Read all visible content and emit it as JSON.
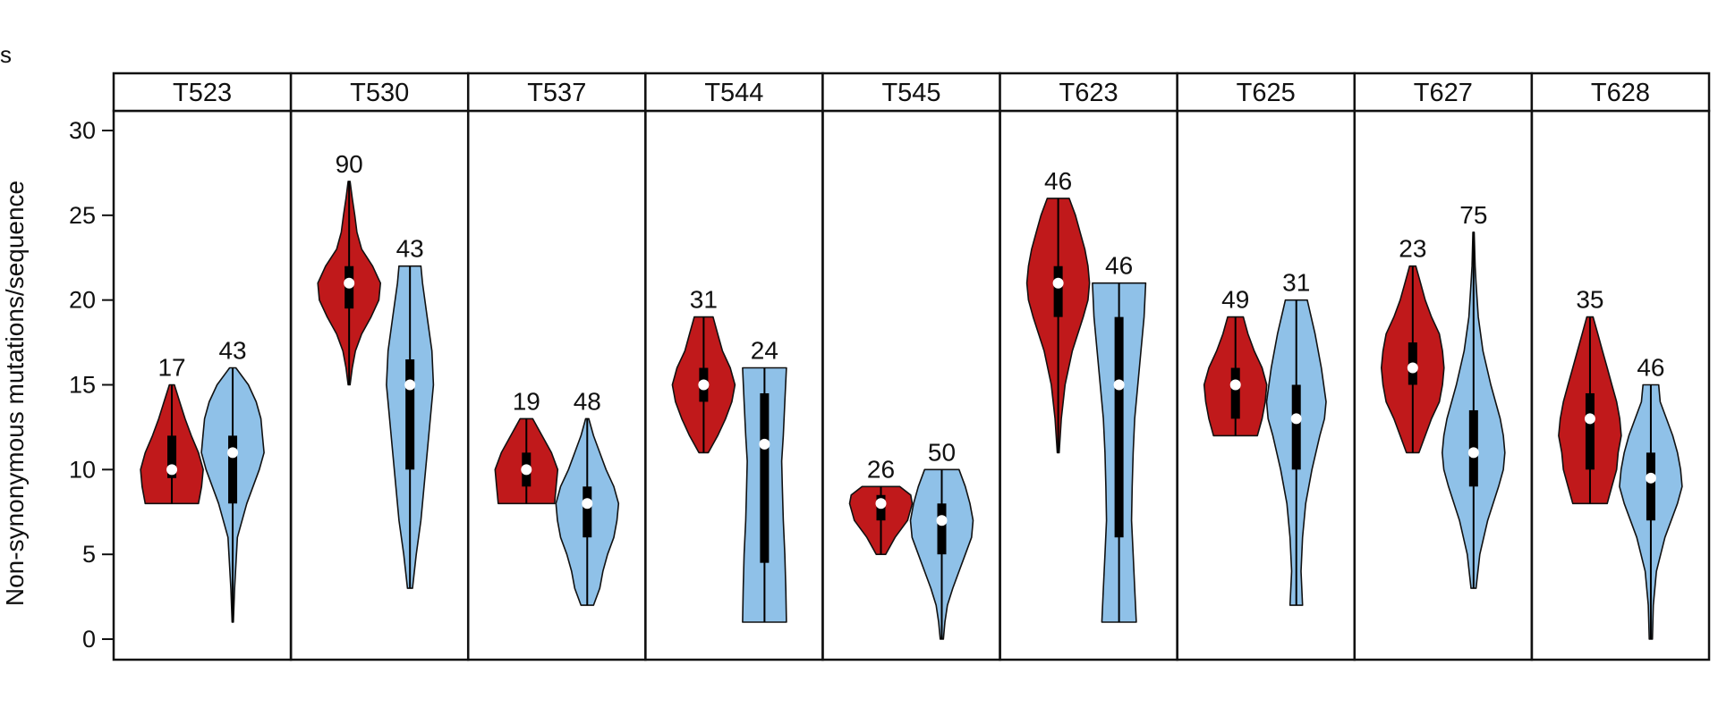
{
  "corner_text": "s",
  "chart_data": {
    "type": "violin",
    "ylabel": "Non-synonymous mutations/sequence",
    "ylim": [
      0,
      32
    ],
    "yticks": [
      0,
      5,
      10,
      15,
      20,
      25,
      30
    ],
    "grid": false,
    "legend": "none",
    "colors": {
      "red": "#c0191b",
      "blue": "#8fc1e8",
      "outline": "#111111",
      "box": "#000000",
      "median": "#ffffff"
    },
    "panels": [
      {
        "label": "T523",
        "violins": [
          {
            "color": "red",
            "n": "17",
            "min": 8,
            "max": 15,
            "q1": 9.5,
            "q3": 12,
            "median": 10,
            "profile": [
              [
                8,
                0.85
              ],
              [
                9,
                0.95
              ],
              [
                10,
                1
              ],
              [
                11,
                0.85
              ],
              [
                12,
                0.62
              ],
              [
                13,
                0.42
              ],
              [
                14,
                0.25
              ],
              [
                15,
                0.08
              ]
            ]
          },
          {
            "color": "blue",
            "n": "43",
            "min": 1,
            "max": 16,
            "q1": 8,
            "q3": 12,
            "median": 11,
            "profile": [
              [
                1,
                0.02
              ],
              [
                3,
                0.06
              ],
              [
                6,
                0.15
              ],
              [
                8,
                0.45
              ],
              [
                10,
                0.85
              ],
              [
                11,
                1
              ],
              [
                12,
                0.95
              ],
              [
                13,
                0.9
              ],
              [
                14,
                0.75
              ],
              [
                15,
                0.5
              ],
              [
                16,
                0.1
              ]
            ]
          }
        ]
      },
      {
        "label": "T530",
        "violins": [
          {
            "color": "red",
            "n": "90",
            "min": 15,
            "max": 27,
            "q1": 19.5,
            "q3": 22,
            "median": 21,
            "profile": [
              [
                15,
                0.03
              ],
              [
                16,
                0.1
              ],
              [
                17,
                0.2
              ],
              [
                18,
                0.4
              ],
              [
                19,
                0.7
              ],
              [
                20,
                0.95
              ],
              [
                21,
                1
              ],
              [
                22,
                0.75
              ],
              [
                23,
                0.4
              ],
              [
                24,
                0.25
              ],
              [
                25,
                0.18
              ],
              [
                26,
                0.1
              ],
              [
                27,
                0.03
              ]
            ]
          },
          {
            "color": "blue",
            "n": "43",
            "min": 3,
            "max": 22,
            "q1": 10,
            "q3": 16.5,
            "median": 15,
            "profile": [
              [
                3,
                0.08
              ],
              [
                5,
                0.2
              ],
              [
                7,
                0.35
              ],
              [
                9,
                0.45
              ],
              [
                11,
                0.55
              ],
              [
                13,
                0.65
              ],
              [
                15,
                0.75
              ],
              [
                17,
                0.7
              ],
              [
                19,
                0.55
              ],
              [
                21,
                0.4
              ],
              [
                22,
                0.35
              ]
            ]
          }
        ]
      },
      {
        "label": "T537",
        "violins": [
          {
            "color": "red",
            "n": "19",
            "min": 8,
            "max": 13,
            "q1": 9,
            "q3": 11,
            "median": 10,
            "profile": [
              [
                8,
                0.9
              ],
              [
                9,
                0.95
              ],
              [
                10,
                1
              ],
              [
                11,
                0.8
              ],
              [
                12,
                0.5
              ],
              [
                13,
                0.2
              ]
            ]
          },
          {
            "color": "blue",
            "n": "48",
            "min": 2,
            "max": 13,
            "q1": 6,
            "q3": 9,
            "median": 8,
            "profile": [
              [
                2,
                0.2
              ],
              [
                3,
                0.4
              ],
              [
                4,
                0.5
              ],
              [
                5,
                0.65
              ],
              [
                6,
                0.85
              ],
              [
                7,
                0.95
              ],
              [
                8,
                1
              ],
              [
                9,
                0.85
              ],
              [
                10,
                0.6
              ],
              [
                11,
                0.4
              ],
              [
                12,
                0.2
              ],
              [
                13,
                0.05
              ]
            ]
          }
        ]
      },
      {
        "label": "T544",
        "violins": [
          {
            "color": "red",
            "n": "31",
            "min": 11,
            "max": 19,
            "q1": 14,
            "q3": 16,
            "median": 15,
            "profile": [
              [
                11,
                0.15
              ],
              [
                12,
                0.45
              ],
              [
                13,
                0.7
              ],
              [
                14,
                0.9
              ],
              [
                15,
                1
              ],
              [
                16,
                0.85
              ],
              [
                17,
                0.6
              ],
              [
                18,
                0.45
              ],
              [
                19,
                0.3
              ]
            ]
          },
          {
            "color": "blue",
            "n": "24",
            "min": 1,
            "max": 16,
            "q1": 4.5,
            "q3": 14.5,
            "median": 11.5,
            "profile": [
              [
                1,
                0.7
              ],
              [
                3,
                0.68
              ],
              [
                5,
                0.65
              ],
              [
                7,
                0.6
              ],
              [
                9,
                0.57
              ],
              [
                10.5,
                0.55
              ],
              [
                12,
                0.6
              ],
              [
                14,
                0.65
              ],
              [
                16,
                0.7
              ]
            ]
          }
        ]
      },
      {
        "label": "T545",
        "violins": [
          {
            "color": "red",
            "n": "26",
            "min": 5,
            "max": 9,
            "q1": 7,
            "q3": 8.5,
            "median": 8,
            "profile": [
              [
                5,
                0.15
              ],
              [
                6,
                0.45
              ],
              [
                7,
                0.85
              ],
              [
                8,
                1
              ],
              [
                8.5,
                0.95
              ],
              [
                9,
                0.6
              ]
            ]
          },
          {
            "color": "blue",
            "n": "50",
            "min": 0,
            "max": 10,
            "q1": 5,
            "q3": 8,
            "median": 7,
            "profile": [
              [
                0,
                0.05
              ],
              [
                1,
                0.1
              ],
              [
                2,
                0.18
              ],
              [
                3,
                0.35
              ],
              [
                4,
                0.55
              ],
              [
                5,
                0.75
              ],
              [
                6,
                0.95
              ],
              [
                7,
                1
              ],
              [
                8,
                0.9
              ],
              [
                9,
                0.75
              ],
              [
                10,
                0.55
              ]
            ]
          }
        ]
      },
      {
        "label": "T623",
        "violins": [
          {
            "color": "red",
            "n": "46",
            "min": 11,
            "max": 26,
            "q1": 19,
            "q3": 22,
            "median": 21,
            "profile": [
              [
                11,
                0.03
              ],
              [
                13,
                0.1
              ],
              [
                15,
                0.22
              ],
              [
                17,
                0.45
              ],
              [
                19,
                0.8
              ],
              [
                20,
                0.95
              ],
              [
                21,
                1
              ],
              [
                22,
                0.95
              ],
              [
                23,
                0.85
              ],
              [
                24,
                0.7
              ],
              [
                25,
                0.55
              ],
              [
                26,
                0.35
              ]
            ]
          },
          {
            "color": "blue",
            "n": "46",
            "min": 1,
            "max": 21,
            "q1": 6,
            "q3": 19,
            "median": 15,
            "profile": [
              [
                1,
                0.55
              ],
              [
                3,
                0.5
              ],
              [
                5,
                0.45
              ],
              [
                7,
                0.4
              ],
              [
                9,
                0.42
              ],
              [
                11,
                0.45
              ],
              [
                13,
                0.5
              ],
              [
                15,
                0.6
              ],
              [
                17,
                0.7
              ],
              [
                19,
                0.8
              ],
              [
                21,
                0.85
              ]
            ]
          }
        ]
      },
      {
        "label": "T625",
        "violins": [
          {
            "color": "red",
            "n": "49",
            "min": 12,
            "max": 19,
            "q1": 13,
            "q3": 16,
            "median": 15,
            "profile": [
              [
                12,
                0.7
              ],
              [
                13,
                0.85
              ],
              [
                14,
                0.95
              ],
              [
                15,
                1
              ],
              [
                16,
                0.85
              ],
              [
                17,
                0.6
              ],
              [
                18,
                0.4
              ],
              [
                19,
                0.25
              ]
            ]
          },
          {
            "color": "blue",
            "n": "31",
            "min": 2,
            "max": 20,
            "q1": 10,
            "q3": 15,
            "median": 13,
            "profile": [
              [
                2,
                0.2
              ],
              [
                4,
                0.15
              ],
              [
                6,
                0.2
              ],
              [
                8,
                0.3
              ],
              [
                10,
                0.5
              ],
              [
                12,
                0.75
              ],
              [
                13,
                0.9
              ],
              [
                14,
                0.95
              ],
              [
                16,
                0.8
              ],
              [
                18,
                0.6
              ],
              [
                20,
                0.35
              ]
            ]
          }
        ]
      },
      {
        "label": "T627",
        "violins": [
          {
            "color": "red",
            "n": "23",
            "min": 11,
            "max": 22,
            "q1": 15,
            "q3": 17.5,
            "median": 16,
            "profile": [
              [
                11,
                0.2
              ],
              [
                12,
                0.4
              ],
              [
                13,
                0.6
              ],
              [
                14,
                0.85
              ],
              [
                15,
                0.95
              ],
              [
                16,
                1
              ],
              [
                17,
                0.95
              ],
              [
                18,
                0.85
              ],
              [
                19,
                0.6
              ],
              [
                20,
                0.4
              ],
              [
                21,
                0.25
              ],
              [
                22,
                0.1
              ]
            ]
          },
          {
            "color": "blue",
            "n": "75",
            "min": 3,
            "max": 24,
            "q1": 9,
            "q3": 13.5,
            "median": 11,
            "profile": [
              [
                3,
                0.08
              ],
              [
                5,
                0.2
              ],
              [
                7,
                0.45
              ],
              [
                9,
                0.8
              ],
              [
                10,
                0.95
              ],
              [
                11,
                1
              ],
              [
                12,
                0.95
              ],
              [
                13,
                0.85
              ],
              [
                15,
                0.55
              ],
              [
                17,
                0.3
              ],
              [
                19,
                0.15
              ],
              [
                21,
                0.08
              ],
              [
                22,
                0.05
              ],
              [
                24,
                0.02
              ]
            ]
          }
        ]
      },
      {
        "label": "T628",
        "violins": [
          {
            "color": "red",
            "n": "35",
            "min": 8,
            "max": 19,
            "q1": 10,
            "q3": 14.5,
            "median": 13,
            "profile": [
              [
                8,
                0.55
              ],
              [
                9,
                0.7
              ],
              [
                10,
                0.85
              ],
              [
                11,
                0.9
              ],
              [
                12,
                1
              ],
              [
                13,
                0.95
              ],
              [
                14,
                0.85
              ],
              [
                15,
                0.7
              ],
              [
                16,
                0.55
              ],
              [
                17,
                0.4
              ],
              [
                18,
                0.25
              ],
              [
                19,
                0.1
              ]
            ]
          },
          {
            "color": "blue",
            "n": "46",
            "min": 0,
            "max": 15,
            "q1": 7,
            "q3": 11,
            "median": 9.5,
            "profile": [
              [
                0,
                0.05
              ],
              [
                2,
                0.08
              ],
              [
                4,
                0.18
              ],
              [
                6,
                0.45
              ],
              [
                8,
                0.85
              ],
              [
                9,
                1
              ],
              [
                10,
                0.95
              ],
              [
                11,
                0.85
              ],
              [
                12,
                0.7
              ],
              [
                13,
                0.5
              ],
              [
                14,
                0.3
              ],
              [
                15,
                0.25
              ]
            ]
          }
        ]
      }
    ]
  }
}
